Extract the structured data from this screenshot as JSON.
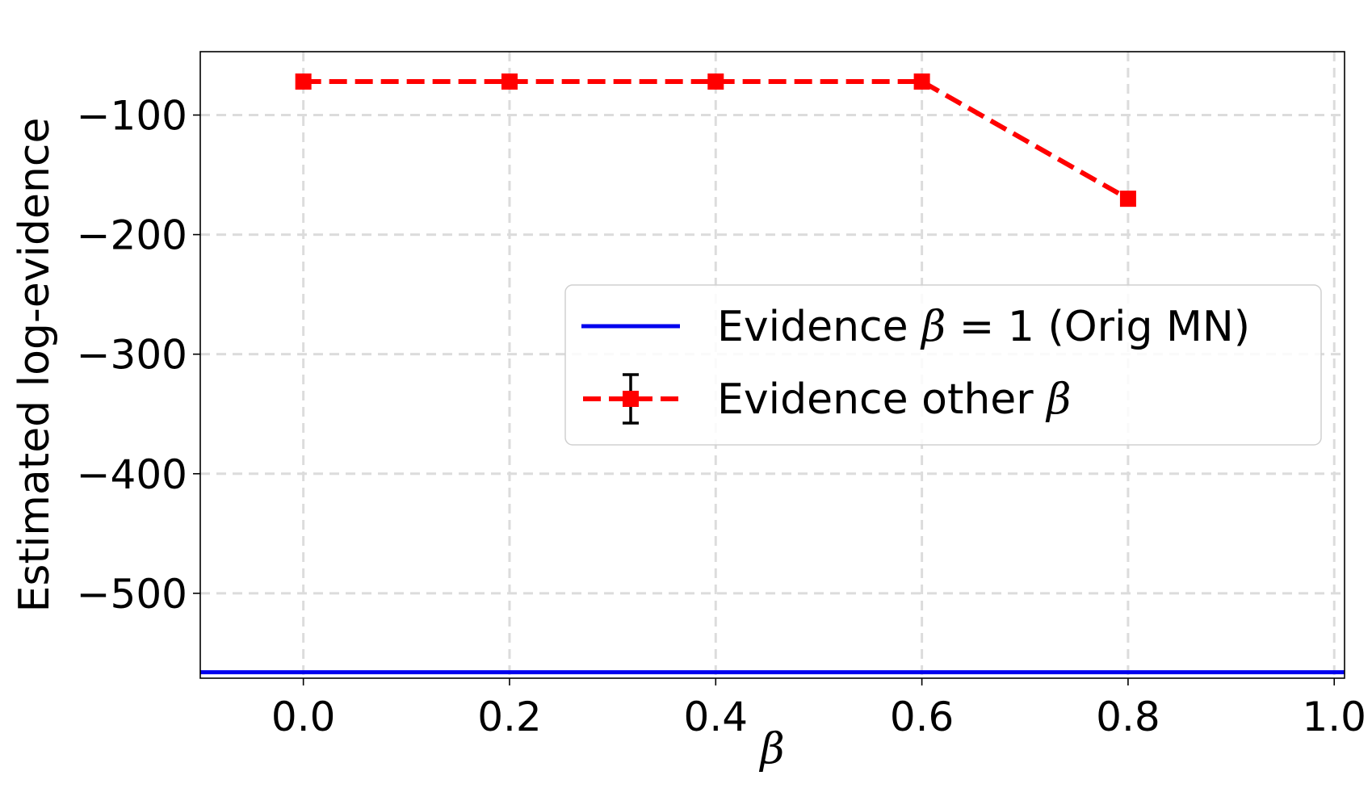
{
  "chart_data": {
    "type": "line",
    "xlabel": "β",
    "ylabel": "Estimated log-evidence",
    "xlim": [
      -0.1,
      1.01
    ],
    "ylim": [
      -571,
      -47
    ],
    "x_ticks": [
      0.0,
      0.2,
      0.4,
      0.6,
      0.8,
      1.0
    ],
    "x_tick_labels": [
      "0.0",
      "0.2",
      "0.4",
      "0.6",
      "0.8",
      "1.0"
    ],
    "y_ticks": [
      -100,
      -200,
      -300,
      -400,
      -500
    ],
    "y_tick_labels": [
      "−100",
      "−200",
      "−300",
      "−400",
      "−500"
    ],
    "grid": true,
    "legend_position": "center-right",
    "series": [
      {
        "name": "Evidence β = 1 (Orig MN)",
        "kind": "horizontal-line",
        "y": -566,
        "color": "#0000ee"
      },
      {
        "name": "Evidence other β",
        "kind": "errorbar-line",
        "x": [
          0.0,
          0.2,
          0.4,
          0.6,
          0.8
        ],
        "y": [
          -72,
          -72,
          -72,
          -72,
          -170
        ],
        "color": "#ff0000",
        "errorbar_color": "#000000"
      }
    ],
    "legend": {
      "line1_prefix": "Evidence ",
      "line1_beta": "β",
      "line1_suffix": " = 1 (Orig MN)",
      "line2_prefix": "Evidence other ",
      "line2_beta": "β"
    }
  }
}
